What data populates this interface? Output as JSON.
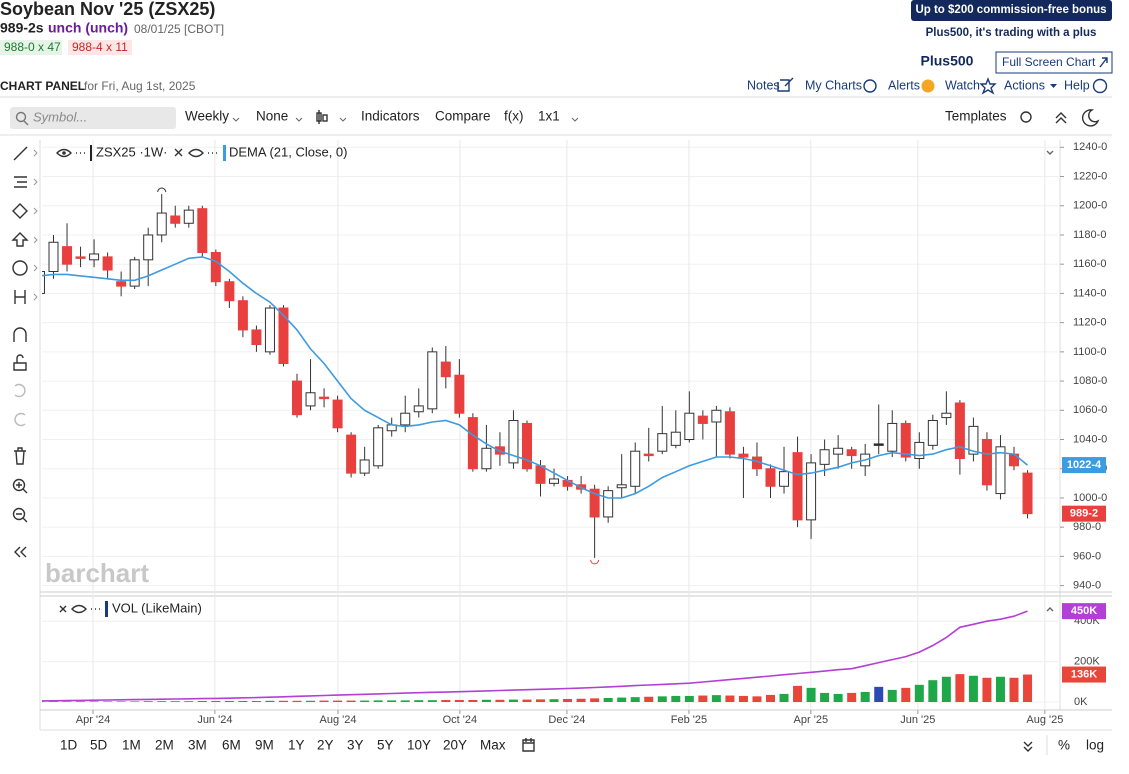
{
  "header": {
    "title": "Soybean Nov '25 (ZSX25)",
    "price": "989-2s",
    "change": "unch (unch)",
    "date": "08/01/25 [CBOT]",
    "bid": "988-0 x 47",
    "ask": "988-4 x 11"
  },
  "ad": {
    "headline": "Up to $200 commission-free bonus",
    "tagline": "Plus500, it's trading with a plus",
    "logo": "Plus500"
  },
  "full_screen": "Full Screen Chart",
  "panel": {
    "title": "CHART PANEL",
    "subtitle": "for Fri, Aug 1st, 2025"
  },
  "nav": [
    "Notes",
    "My Charts",
    "Alerts",
    "Watch",
    "Actions",
    "Help"
  ],
  "toolbar": {
    "symbol_placeholder": "Symbol...",
    "items": [
      "Weekly",
      "None",
      "Indicators",
      "Compare",
      "f(x)",
      "1x1"
    ],
    "templates": "Templates"
  },
  "periods": [
    "1D",
    "5D",
    "1M",
    "2M",
    "3M",
    "6M",
    "9M",
    "1Y",
    "2Y",
    "3Y",
    "5Y",
    "10Y",
    "20Y",
    "Max"
  ],
  "bottom_right": [
    "%",
    "log"
  ],
  "watermark": "barchart",
  "chart_data": {
    "type": "candlestick",
    "symbol_label": "ZSX25 ·1W·",
    "up_color": "#ffffff",
    "down_color": "#e8403f",
    "flat_color": "#222222",
    "open": [
      1140,
      1155,
      1172,
      1165,
      1163,
      1165,
      1148,
      1145,
      1163,
      1180,
      1193,
      1188,
      1198,
      1168,
      1148,
      1135,
      1115,
      1100,
      1130,
      1080,
      1063,
      1069,
      1067,
      1043,
      1017,
      1022,
      1046,
      1050,
      1059,
      1061,
      1093,
      1084,
      1055,
      1020,
      1035,
      1024,
      1051,
      1022,
      1010,
      1012,
      1009,
      1006,
      987,
      1007,
      1008,
      1030,
      1032,
      1036,
      1040,
      1056,
      1052,
      1059,
      1030,
      1028,
      1020,
      1008,
      1031,
      985,
      1023,
      1030,
      1033,
      1022,
      1037,
      1032,
      1051,
      1027,
      1036,
      1055,
      1065,
      1030,
      1040,
      1003,
      1030,
      1017
    ],
    "high": [
      1160,
      1180,
      1188,
      1172,
      1177,
      1168,
      1155,
      1165,
      1185,
      1208,
      1200,
      1200,
      1200,
      1170,
      1150,
      1138,
      1118,
      1132,
      1132,
      1085,
      1095,
      1075,
      1070,
      1045,
      1035,
      1050,
      1055,
      1070,
      1075,
      1103,
      1104,
      1095,
      1058,
      1050,
      1045,
      1060,
      1053,
      1026,
      1020,
      1015,
      1015,
      1009,
      1008,
      1030,
      1038,
      1048,
      1063,
      1060,
      1073,
      1060,
      1063,
      1062,
      1035,
      1038,
      1023,
      1035,
      1042,
      1030,
      1040,
      1043,
      1035,
      1037,
      1064,
      1060,
      1053,
      1045,
      1057,
      1073,
      1067,
      1055,
      1045,
      1043,
      1035,
      1019
    ],
    "low": [
      1125,
      1150,
      1155,
      1158,
      1158,
      1150,
      1138,
      1143,
      1145,
      1175,
      1185,
      1185,
      1165,
      1145,
      1130,
      1110,
      1100,
      1098,
      1090,
      1055,
      1060,
      1062,
      1045,
      1014,
      1015,
      1020,
      1042,
      1045,
      1055,
      1058,
      1075,
      1055,
      1018,
      1018,
      1022,
      1020,
      1018,
      1001,
      1008,
      1005,
      1003,
      959,
      983,
      1000,
      1003,
      1025,
      1030,
      1034,
      1038,
      1040,
      1028,
      1027,
      1000,
      1015,
      1000,
      1003,
      980,
      972,
      1015,
      1020,
      1020,
      1015,
      1030,
      1028,
      1025,
      1020,
      1033,
      1050,
      1016,
      1025,
      1005,
      999,
      1019,
      986
    ],
    "close": [
      1155,
      1175,
      1160,
      1164,
      1167,
      1156,
      1145,
      1163,
      1180,
      1195,
      1188,
      1197,
      1168,
      1148,
      1135,
      1115,
      1105,
      1130,
      1092,
      1057,
      1072,
      1068,
      1048,
      1017,
      1026,
      1048,
      1050,
      1058,
      1063,
      1100,
      1083,
      1058,
      1020,
      1034,
      1030,
      1053,
      1020,
      1010,
      1013,
      1008,
      1006,
      987,
      1005,
      1009,
      1032,
      1029,
      1044,
      1045,
      1058,
      1051,
      1060,
      1030,
      1028,
      1020,
      1008,
      1018,
      985,
      1024,
      1033,
      1034,
      1029,
      1030,
      1037,
      1051,
      1028,
      1038,
      1053,
      1058,
      1027,
      1049,
      1009,
      1035,
      1022,
      989.25
    ],
    "close_last_label": "989-2",
    "dema": {
      "name": "DEMA (21, Close, 0)",
      "color": "#3d9be0",
      "last_label": "1022-4",
      "values": [
        1152,
        1153,
        1153,
        1152,
        1151,
        1150,
        1149,
        1149,
        1152,
        1156,
        1160,
        1164,
        1165,
        1162,
        1155,
        1147,
        1140,
        1134,
        1125,
        1115,
        1102,
        1092,
        1080,
        1068,
        1060,
        1055,
        1050,
        1049,
        1050,
        1052,
        1053,
        1050,
        1043,
        1037,
        1032,
        1029,
        1026,
        1022,
        1017,
        1012,
        1007,
        1003,
        1000,
        1000,
        1003,
        1008,
        1014,
        1018,
        1022,
        1025,
        1028,
        1028,
        1027,
        1025,
        1022,
        1019,
        1016,
        1017,
        1019,
        1021,
        1024,
        1026,
        1029,
        1031,
        1030,
        1029,
        1030,
        1033,
        1035,
        1032,
        1030,
        1031,
        1030,
        1022.5
      ]
    },
    "xlim": [
      0.15,
      75.4
    ],
    "xticks": [
      {
        "value": 3.92,
        "label": "Apr '24"
      },
      {
        "value": 12.93,
        "label": "Jun '24"
      },
      {
        "value": 22.03,
        "label": "Aug '24"
      },
      {
        "value": 31.04,
        "label": "Oct '24"
      },
      {
        "value": 38.95,
        "label": "Dec '24"
      },
      {
        "value": 47.97,
        "label": "Feb '25"
      },
      {
        "value": 56.98,
        "label": "Apr '25"
      },
      {
        "value": 64.89,
        "label": "Jun '25"
      },
      {
        "value": 74.28,
        "label": "Aug '25"
      }
    ],
    "ylim": [
      937,
      1245
    ],
    "yticks": [
      {
        "value": 940,
        "label": "940-0"
      },
      {
        "value": 960,
        "label": "960-0"
      },
      {
        "value": 980,
        "label": "980-0"
      },
      {
        "value": 1000,
        "label": "1000-0"
      },
      {
        "value": 1020,
        "label": "1020-0"
      },
      {
        "value": 1040,
        "label": "1040-0"
      },
      {
        "value": 1060,
        "label": "1060-0"
      },
      {
        "value": 1080,
        "label": "1080-0"
      },
      {
        "value": 1100,
        "label": "1100-0"
      },
      {
        "value": 1120,
        "label": "1120-0"
      },
      {
        "value": 1140,
        "label": "1140-0"
      },
      {
        "value": 1160,
        "label": "1160-0"
      },
      {
        "value": 1180,
        "label": "1180-0"
      },
      {
        "value": 1200,
        "label": "1200-0"
      },
      {
        "value": 1220,
        "label": "1220-0"
      },
      {
        "value": 1240,
        "label": "1240-0"
      }
    ],
    "grid": true,
    "volume": {
      "name": "VOL (LikeMain)",
      "up_color": "#1fa84a",
      "down_color": "#e8463b",
      "flat_color": "#2b4bb3",
      "last_label": "136K",
      "values": [
        2000,
        2000,
        2000,
        3000,
        3000,
        3000,
        3000,
        3000,
        4000,
        4000,
        4000,
        4000,
        5000,
        5000,
        5000,
        5000,
        5000,
        6000,
        6000,
        6000,
        6000,
        7000,
        7000,
        7000,
        7000,
        8000,
        8000,
        8000,
        9000,
        9000,
        10000,
        10000,
        10000,
        11000,
        11000,
        12000,
        12000,
        13000,
        14000,
        15000,
        16000,
        18000,
        20000,
        22000,
        24000,
        26000,
        28000,
        30000,
        30000,
        32000,
        34000,
        32000,
        30000,
        28000,
        35000,
        40000,
        80000,
        70000,
        45000,
        40000,
        45000,
        50000,
        75000,
        60000,
        70000,
        85000,
        108000,
        125000,
        138000,
        130000,
        120000,
        125000,
        120000,
        136000
      ],
      "line_color": "#b43fd6",
      "line_last_label": "450K",
      "line_values": [
        5000,
        6000,
        7000,
        8000,
        9000,
        10000,
        11000,
        12000,
        13000,
        14000,
        15000,
        16000,
        17000,
        18000,
        19000,
        21000,
        22000,
        24000,
        26000,
        28000,
        30000,
        32000,
        34000,
        36000,
        38000,
        40000,
        42000,
        44000,
        46000,
        48000,
        49000,
        51000,
        53000,
        55000,
        57000,
        59000,
        61000,
        63000,
        65000,
        67000,
        69000,
        72000,
        75000,
        78000,
        81000,
        84000,
        87000,
        90000,
        93000,
        99000,
        105000,
        111000,
        117000,
        123000,
        129000,
        135000,
        141000,
        147000,
        153000,
        160000,
        165000,
        180000,
        195000,
        210000,
        225000,
        247000,
        280000,
        320000,
        370000,
        385000,
        400000,
        410000,
        425000,
        450000
      ],
      "ylim": [
        0,
        520000
      ],
      "yticks": [
        {
          "value": 0,
          "label": "0K"
        },
        {
          "value": 200000,
          "label": "200K"
        },
        {
          "value": 400000,
          "label": "400K"
        }
      ]
    }
  }
}
